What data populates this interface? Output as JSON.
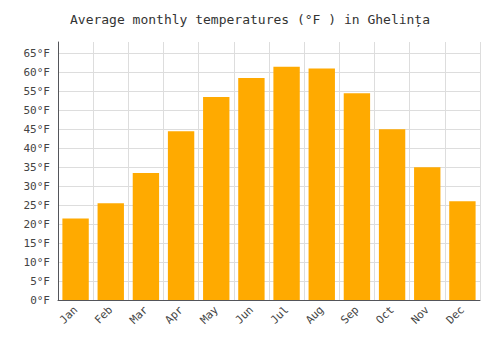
{
  "chart_data": {
    "type": "bar",
    "title": "Average monthly temperatures (°F ) in Ghelința",
    "categories": [
      "Jan",
      "Feb",
      "Mar",
      "Apr",
      "May",
      "Jun",
      "Jul",
      "Aug",
      "Sep",
      "Oct",
      "Nov",
      "Dec"
    ],
    "values": [
      21.5,
      25.5,
      33.5,
      44.5,
      53.5,
      58.5,
      61.5,
      61.0,
      54.5,
      45.0,
      35.0,
      26.0
    ],
    "color": "#FFAA00",
    "ylim": [
      0,
      68
    ],
    "yticks": [
      {
        "value": 0,
        "label": "0°F"
      },
      {
        "value": 5,
        "label": "5°F"
      },
      {
        "value": 10,
        "label": "10°F"
      },
      {
        "value": 15,
        "label": "15°F"
      },
      {
        "value": 20,
        "label": "20°F"
      },
      {
        "value": 25,
        "label": "25°F"
      },
      {
        "value": 30,
        "label": "30°F"
      },
      {
        "value": 35,
        "label": "35°F"
      },
      {
        "value": 40,
        "label": "40°F"
      },
      {
        "value": 45,
        "label": "45°F"
      },
      {
        "value": 50,
        "label": "50°F"
      },
      {
        "value": 55,
        "label": "55°F"
      },
      {
        "value": 60,
        "label": "60°F"
      },
      {
        "value": 65,
        "label": "65°F"
      }
    ],
    "grid": true
  }
}
